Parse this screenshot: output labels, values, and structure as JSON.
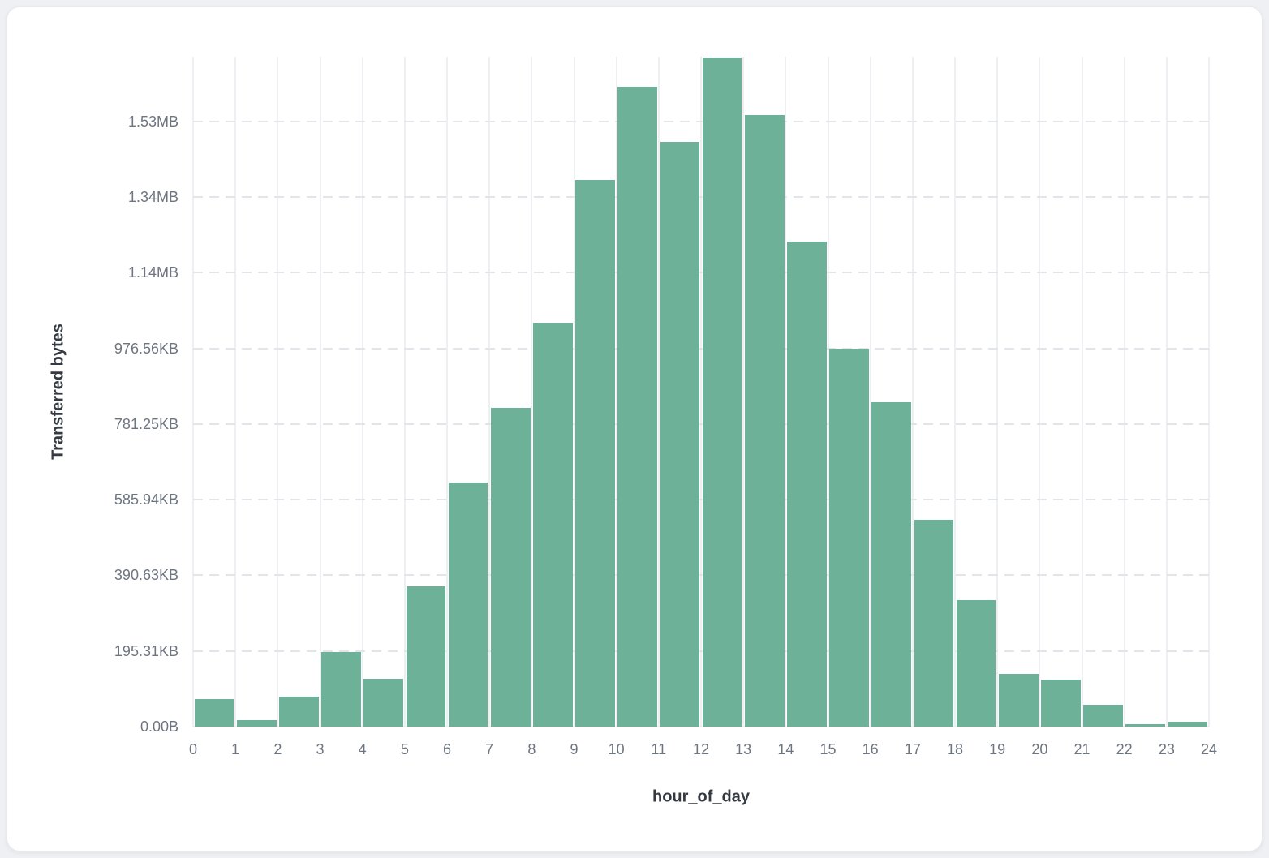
{
  "chart_data": {
    "type": "bar",
    "title": "",
    "xlabel": "hour_of_day",
    "ylabel": "Transferred bytes",
    "bar_color": "#6db198",
    "grid": true,
    "legend": "none",
    "x_bin_start_hours": [
      0,
      1,
      2,
      3,
      4,
      5,
      6,
      7,
      8,
      9,
      10,
      11,
      12,
      13,
      14,
      15,
      16,
      17,
      18,
      19,
      20,
      21,
      22,
      23
    ],
    "values_kb": [
      71,
      16,
      77,
      193,
      123,
      362,
      630,
      823,
      1043,
      1411,
      1652,
      1510,
      1727,
      1578,
      1252,
      976,
      837,
      534,
      327,
      136,
      121,
      57,
      6,
      13
    ],
    "x_tick_labels": [
      "0",
      "1",
      "2",
      "3",
      "4",
      "5",
      "6",
      "7",
      "8",
      "9",
      "10",
      "11",
      "12",
      "13",
      "14",
      "15",
      "16",
      "17",
      "18",
      "19",
      "20",
      "21",
      "22",
      "23",
      "24"
    ],
    "y_ticks": [
      {
        "label": "0.00B",
        "kb": 0
      },
      {
        "label": "195.31KB",
        "kb": 195.31
      },
      {
        "label": "390.63KB",
        "kb": 390.63
      },
      {
        "label": "585.94KB",
        "kb": 585.94
      },
      {
        "label": "781.25KB",
        "kb": 781.25
      },
      {
        "label": "976.56KB",
        "kb": 976.56
      },
      {
        "label": "1.14MB",
        "kb": 1171.88
      },
      {
        "label": "1.34MB",
        "kb": 1367.19
      },
      {
        "label": "1.53MB",
        "kb": 1562.5
      }
    ],
    "xlim_hours": [
      0,
      24
    ],
    "ylim_kb": [
      0,
      1729.5
    ]
  }
}
